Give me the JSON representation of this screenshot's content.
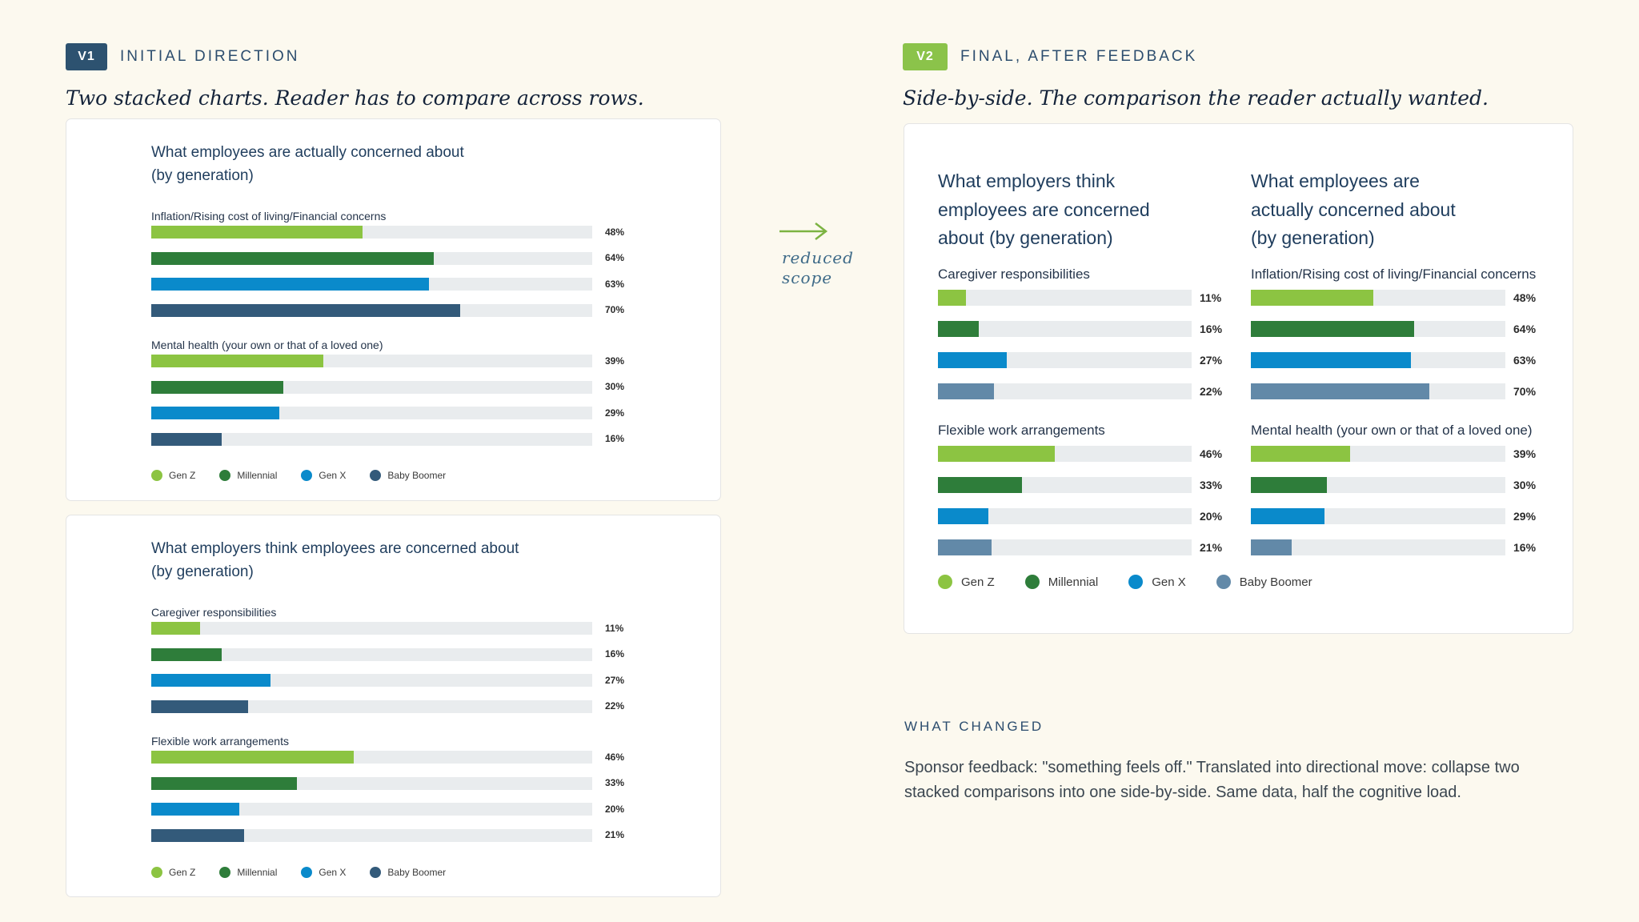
{
  "v1": {
    "tag": "V1",
    "tag_color": "#2d5270",
    "label": "INITIAL DIRECTION",
    "subtitle": "Two stacked charts. Reader has to compare across rows."
  },
  "v2": {
    "tag": "V2",
    "tag_color": "#8bc34a",
    "label": "FINAL, AFTER FEEDBACK",
    "subtitle": "Side-by-side. The comparison the reader actually wanted."
  },
  "arrow_label": [
    "reduced",
    "scope"
  ],
  "legend": [
    {
      "name": "Gen Z",
      "color": "#8cc442"
    },
    {
      "name": "Millennial",
      "color": "#2e7d3a"
    },
    {
      "name": "Gen X",
      "color": "#0a8acb"
    },
    {
      "name": "Baby Boomer",
      "color": "#335a7a"
    }
  ],
  "v2_legend_colors": [
    "#8cc442",
    "#2e7d3a",
    "#0a8acb",
    "#6289a8"
  ],
  "what_changed": {
    "title": "WHAT CHANGED",
    "body": "Sponsor feedback: \"something feels off.\" Translated into directional move: collapse two stacked comparisons into one side-by-side. Same data, half the cognitive load."
  },
  "chart_data": [
    {
      "type": "bar",
      "title": "What employees are actually concerned about (by generation)",
      "title_lines": [
        "What employees are actually concerned about",
        "(by generation)"
      ],
      "categories": [
        "Inflation/Rising cost of living/Financial concerns",
        "Mental health (your own or that of a loved one)"
      ],
      "series": [
        {
          "name": "Gen Z",
          "values": [
            48,
            39
          ]
        },
        {
          "name": "Millennial",
          "values": [
            64,
            30
          ]
        },
        {
          "name": "Gen X",
          "values": [
            63,
            29
          ]
        },
        {
          "name": "Baby Boomer",
          "values": [
            70,
            16
          ]
        }
      ],
      "value_labels": [
        [
          "48%",
          "64%",
          "63%",
          "70%"
        ],
        [
          "39%",
          "30%",
          "29%",
          "16%"
        ]
      ],
      "xlim": [
        0,
        100
      ],
      "legend_position": "bottom"
    },
    {
      "type": "bar",
      "title": "What employers think employees are concerned about (by generation)",
      "title_lines": [
        "What employers think employees are concerned about",
        "(by generation)"
      ],
      "categories": [
        "Caregiver responsibilities",
        "Flexible work arrangements"
      ],
      "series": [
        {
          "name": "Gen Z",
          "values": [
            11,
            46
          ]
        },
        {
          "name": "Millennial",
          "values": [
            16,
            33
          ]
        },
        {
          "name": "Gen X",
          "values": [
            27,
            20
          ]
        },
        {
          "name": "Baby Boomer",
          "values": [
            22,
            21
          ]
        }
      ],
      "value_labels": [
        [
          "11%",
          "16%",
          "27%",
          "22%"
        ],
        [
          "46%",
          "33%",
          "20%",
          "21%"
        ]
      ],
      "xlim": [
        0,
        100
      ],
      "legend_position": "bottom"
    },
    {
      "type": "bar",
      "title": "What employers think employees are concerned about (by generation)",
      "title_lines": [
        "What employers think",
        "employees are concerned",
        "about (by generation)"
      ],
      "categories": [
        "Caregiver responsibilities",
        "Flexible work arrangements"
      ],
      "series": [
        {
          "name": "Gen Z",
          "values": [
            11,
            46
          ]
        },
        {
          "name": "Millennial",
          "values": [
            16,
            33
          ]
        },
        {
          "name": "Gen X",
          "values": [
            27,
            20
          ]
        },
        {
          "name": "Baby Boomer",
          "values": [
            22,
            21
          ]
        }
      ],
      "value_labels": [
        [
          "11%",
          "16%",
          "27%",
          "22%"
        ],
        [
          "46%",
          "33%",
          "20%",
          "21%"
        ]
      ],
      "xlim": [
        0,
        100
      ],
      "legend_position": "bottom"
    },
    {
      "type": "bar",
      "title": "What employees are actually concerned about (by generation)",
      "title_lines": [
        "What employees are",
        "actually concerned about",
        "(by generation)"
      ],
      "categories": [
        "Inflation/Rising cost of living/Financial concerns",
        "Mental health (your own or that of a loved one)"
      ],
      "series": [
        {
          "name": "Gen Z",
          "values": [
            48,
            39
          ]
        },
        {
          "name": "Millennial",
          "values": [
            64,
            30
          ]
        },
        {
          "name": "Gen X",
          "values": [
            63,
            29
          ]
        },
        {
          "name": "Baby Boomer",
          "values": [
            70,
            16
          ]
        }
      ],
      "value_labels": [
        [
          "48%",
          "64%",
          "63%",
          "70%"
        ],
        [
          "39%",
          "30%",
          "29%",
          "16%"
        ]
      ],
      "xlim": [
        0,
        100
      ],
      "legend_position": "bottom"
    }
  ]
}
